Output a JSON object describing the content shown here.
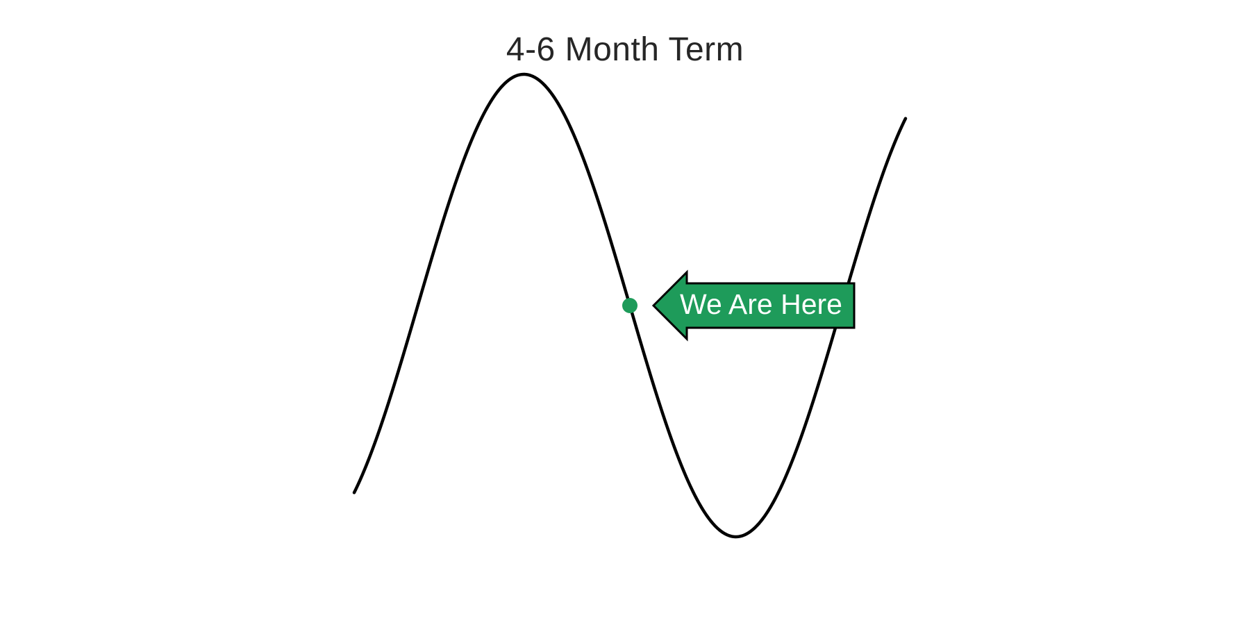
{
  "title": "4-6 Month Term",
  "marker": {
    "label": "We Are Here"
  },
  "colors": {
    "title": "#262626",
    "curve": "#000000",
    "marker": "#1e9b5a",
    "arrow_fill": "#1e9b5a",
    "arrow_outline": "#000000",
    "arrow_text": "#ffffff"
  }
}
